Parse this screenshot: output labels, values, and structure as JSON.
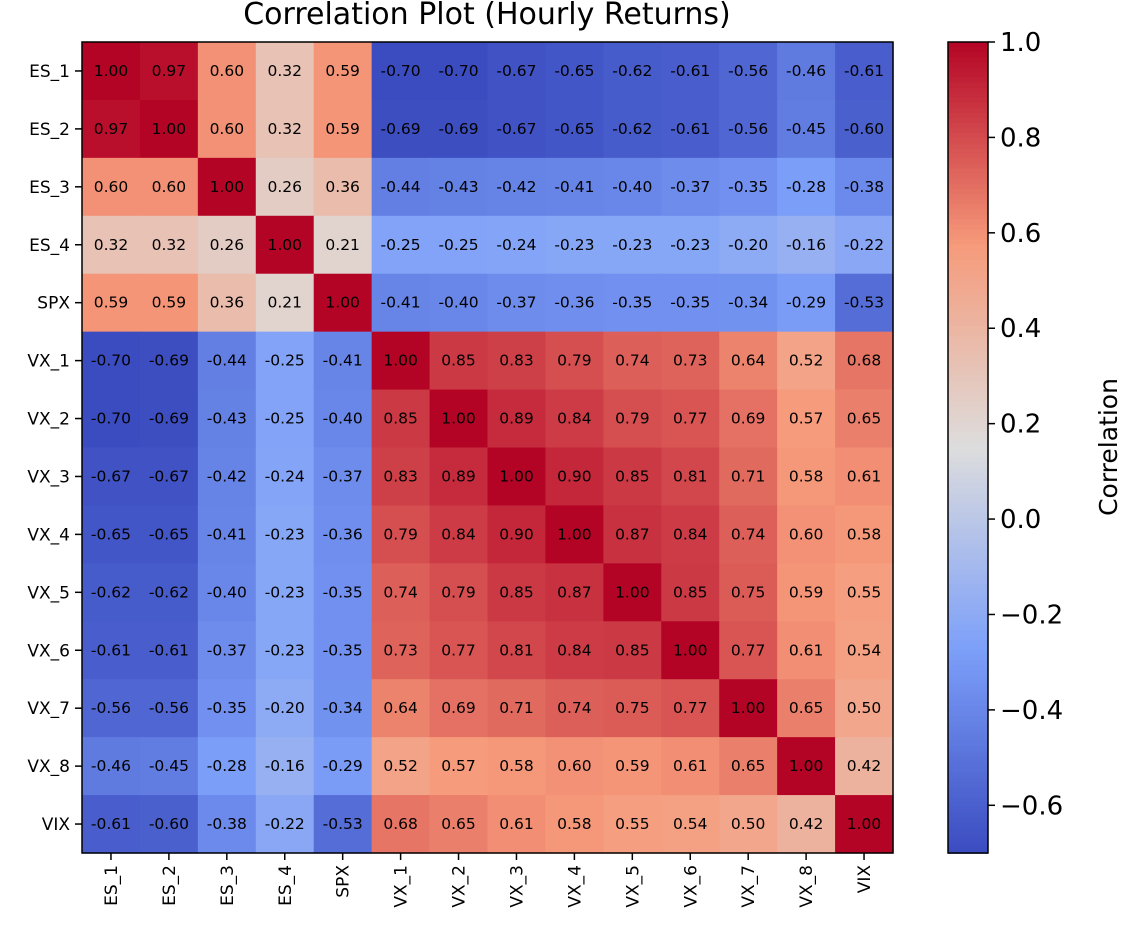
{
  "chart_data": {
    "type": "heatmap",
    "title": "Correlation Plot (Hourly Returns)",
    "labels": [
      "ES_1",
      "ES_2",
      "ES_3",
      "ES_4",
      "SPX",
      "VX_1",
      "VX_2",
      "VX_3",
      "VX_4",
      "VX_5",
      "VX_6",
      "VX_7",
      "VX_8",
      "VIX"
    ],
    "matrix": [
      [
        1.0,
        0.97,
        0.6,
        0.32,
        0.59,
        -0.7,
        -0.7,
        -0.67,
        -0.65,
        -0.62,
        -0.61,
        -0.56,
        -0.46,
        -0.61
      ],
      [
        0.97,
        1.0,
        0.6,
        0.32,
        0.59,
        -0.69,
        -0.69,
        -0.67,
        -0.65,
        -0.62,
        -0.61,
        -0.56,
        -0.45,
        -0.6
      ],
      [
        0.6,
        0.6,
        1.0,
        0.26,
        0.36,
        -0.44,
        -0.43,
        -0.42,
        -0.41,
        -0.4,
        -0.37,
        -0.35,
        -0.28,
        -0.38
      ],
      [
        0.32,
        0.32,
        0.26,
        1.0,
        0.21,
        -0.25,
        -0.25,
        -0.24,
        -0.23,
        -0.23,
        -0.23,
        -0.2,
        -0.16,
        -0.22
      ],
      [
        0.59,
        0.59,
        0.36,
        0.21,
        1.0,
        -0.41,
        -0.4,
        -0.37,
        -0.36,
        -0.35,
        -0.35,
        -0.34,
        -0.29,
        -0.53
      ],
      [
        -0.7,
        -0.69,
        -0.44,
        -0.25,
        -0.41,
        1.0,
        0.85,
        0.83,
        0.79,
        0.74,
        0.73,
        0.64,
        0.52,
        0.68
      ],
      [
        -0.7,
        -0.69,
        -0.43,
        -0.25,
        -0.4,
        0.85,
        1.0,
        0.89,
        0.84,
        0.79,
        0.77,
        0.69,
        0.57,
        0.65
      ],
      [
        -0.67,
        -0.67,
        -0.42,
        -0.24,
        -0.37,
        0.83,
        0.89,
        1.0,
        0.9,
        0.85,
        0.81,
        0.71,
        0.58,
        0.61
      ],
      [
        -0.65,
        -0.65,
        -0.41,
        -0.23,
        -0.36,
        0.79,
        0.84,
        0.9,
        1.0,
        0.87,
        0.84,
        0.74,
        0.6,
        0.58
      ],
      [
        -0.62,
        -0.62,
        -0.4,
        -0.23,
        -0.35,
        0.74,
        0.79,
        0.85,
        0.87,
        1.0,
        0.85,
        0.75,
        0.59,
        0.55
      ],
      [
        -0.61,
        -0.61,
        -0.37,
        -0.23,
        -0.35,
        0.73,
        0.77,
        0.81,
        0.84,
        0.85,
        1.0,
        0.77,
        0.61,
        0.54
      ],
      [
        -0.56,
        -0.56,
        -0.35,
        -0.2,
        -0.34,
        0.64,
        0.69,
        0.71,
        0.74,
        0.75,
        0.77,
        1.0,
        0.65,
        0.5
      ],
      [
        -0.46,
        -0.45,
        -0.28,
        -0.16,
        -0.29,
        0.52,
        0.57,
        0.58,
        0.6,
        0.59,
        0.61,
        0.65,
        1.0,
        0.42
      ],
      [
        -0.61,
        -0.6,
        -0.38,
        -0.22,
        -0.53,
        0.68,
        0.65,
        0.61,
        0.58,
        0.55,
        0.54,
        0.5,
        0.42,
        1.0
      ]
    ],
    "colorbar": {
      "label": "Correlation",
      "vmin": -0.7,
      "vmax": 1.0,
      "ticks": [
        1.0,
        0.8,
        0.6,
        0.4,
        0.2,
        0.0,
        -0.2,
        -0.4,
        -0.6
      ],
      "tick_labels": [
        "1.0",
        "0.8",
        "0.6",
        "0.4",
        "0.2",
        "0.0",
        "−0.2",
        "−0.4",
        "−0.6"
      ]
    },
    "colormap": "coolwarm"
  }
}
